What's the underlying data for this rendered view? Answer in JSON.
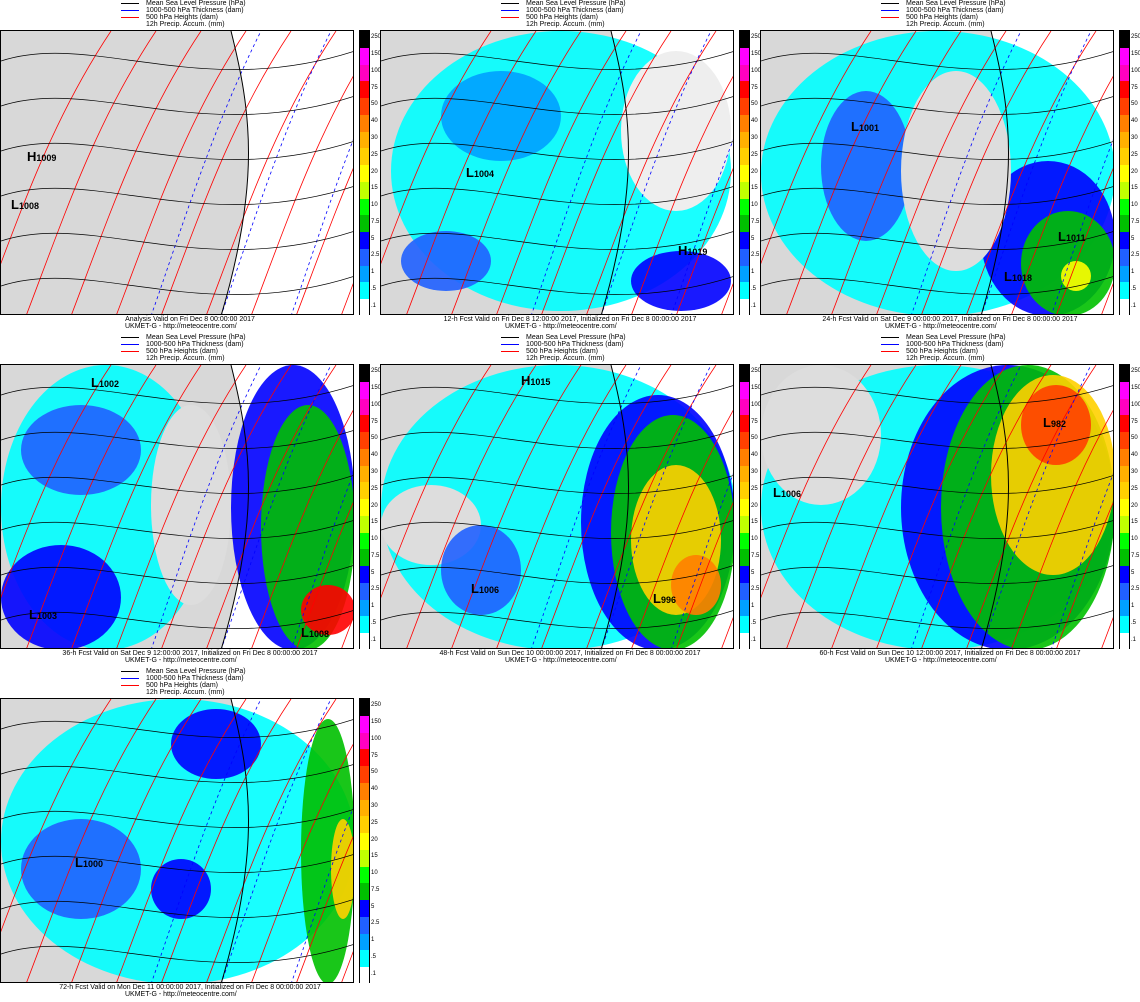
{
  "legend": {
    "mslp": "Mean Sea Level Pressure (hPa)",
    "thickness": "1000-500 hPa Thickness (dam)",
    "heights": "500 hPa Heights (dam)",
    "precip": "12h Precip. Accum. (mm)"
  },
  "colors": {
    "mslp": "#000000",
    "thickness": "#0000ff",
    "heights": "#ff0000"
  },
  "colorbar": {
    "labels": [
      "250",
      "150",
      "100",
      "75",
      "50",
      "40",
      "30",
      "25",
      "20",
      "15",
      "10",
      "7.5",
      "5",
      "2.5",
      "1",
      ".5",
      ".1"
    ],
    "colors": [
      "#000000",
      "#ff00ff",
      "#ff00c0",
      "#ff0000",
      "#ff4000",
      "#ff8000",
      "#ffb000",
      "#ffd000",
      "#ffff00",
      "#c0ff00",
      "#00ff00",
      "#00c000",
      "#0000ff",
      "#2060ff",
      "#00a0ff",
      "#00ffff",
      "#ffffff"
    ]
  },
  "site_label": "UKMET-G  - http://meteocentre.com/",
  "panels": [
    {
      "caption": "Analysis Valid on Fri Dec  8 00:00:00 2017",
      "systems": [
        {
          "type": "H",
          "value": "1009"
        },
        {
          "type": "L",
          "value": "1008"
        }
      ]
    },
    {
      "caption": "12-h Fcst Valid on Fri Dec  8 12:00:00 2017, Initialized on Fri Dec  8 00:00:00 2017",
      "systems": [
        {
          "type": "L",
          "value": "1004"
        },
        {
          "type": "H",
          "value": "1019"
        }
      ]
    },
    {
      "caption": "24-h Fcst Valid on Sat Dec  9 00:00:00 2017, Initialized on Fri Dec  8 00:00:00 2017",
      "systems": [
        {
          "type": "L",
          "value": "1001"
        },
        {
          "type": "L",
          "value": "1011"
        },
        {
          "type": "L",
          "value": "1018"
        }
      ]
    },
    {
      "caption": "36-h Fcst Valid on Sat Dec  9 12:00:00 2017, Initialized on Fri Dec  8 00:00:00 2017",
      "systems": [
        {
          "type": "L",
          "value": "1002"
        },
        {
          "type": "L",
          "value": "1003"
        },
        {
          "type": "L",
          "value": "1008"
        }
      ]
    },
    {
      "caption": "48-h Fcst Valid on Sun Dec 10 00:00:00 2017, Initialized on Fri Dec  8 00:00:00 2017",
      "systems": [
        {
          "type": "H",
          "value": "1015"
        },
        {
          "type": "L",
          "value": "1006"
        },
        {
          "type": "L",
          "value": "996"
        }
      ]
    },
    {
      "caption": "60-h Fcst Valid on Sun Dec 10 12:00:00 2017, Initialized on Fri Dec  8 00:00:00 2017",
      "systems": [
        {
          "type": "L",
          "value": "982"
        },
        {
          "type": "L",
          "value": "1006"
        }
      ]
    },
    {
      "caption": "72-h Fcst Valid on Mon Dec 11 00:00:00 2017, Initialized on Fri Dec  8 00:00:00 2017",
      "systems": [
        {
          "type": "L",
          "value": "1000"
        }
      ]
    }
  ]
}
